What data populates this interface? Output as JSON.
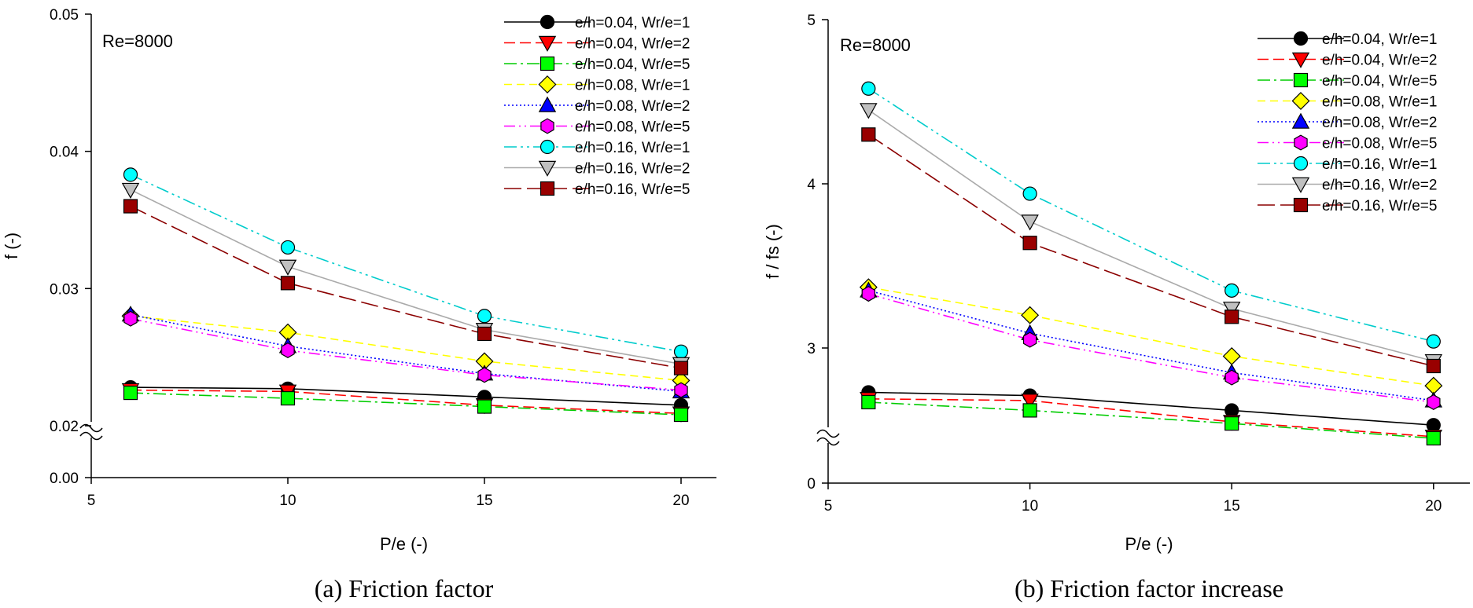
{
  "series_styles": [
    {
      "name": "e/h=0.04, Wr/e=1",
      "color": "#000000",
      "marker": "circle",
      "dash": "",
      "marker_fill": "#000000"
    },
    {
      "name": "e/h=0.04, Wr/e=2",
      "color": "#ff0000",
      "marker": "triangle-down",
      "dash": "14,6",
      "marker_fill": "#ff0000"
    },
    {
      "name": "e/h=0.04, Wr/e=5",
      "color": "#00cc00",
      "marker": "square",
      "dash": "16,5,3,5",
      "marker_fill": "#00ff00"
    },
    {
      "name": "e/h=0.08, Wr/e=1",
      "color": "#ffff00",
      "marker": "diamond",
      "dash": "10,6",
      "marker_fill": "#ffff00"
    },
    {
      "name": "e/h=0.08, Wr/e=2",
      "color": "#0000ff",
      "marker": "triangle-up",
      "dash": "2,3",
      "marker_fill": "#0000ff"
    },
    {
      "name": "e/h=0.08, Wr/e=5",
      "color": "#ff00ff",
      "marker": "hexagon",
      "dash": "14,5,2,5,2,5",
      "marker_fill": "#ff00ff"
    },
    {
      "name": "e/h=0.16, Wr/e=1",
      "color": "#00cccc",
      "marker": "circle",
      "dash": "16,5,3,5,3,5",
      "marker_fill": "#00ffff"
    },
    {
      "name": "e/h=0.16, Wr/e=2",
      "color": "#aaaaaa",
      "marker": "triangle-down",
      "dash": "",
      "marker_fill": "#c0c0c0"
    },
    {
      "name": "e/h=0.16, Wr/e=5",
      "color": "#8b0000",
      "marker": "square",
      "dash": "22,7",
      "marker_fill": "#990000"
    }
  ],
  "chart_data": [
    {
      "type": "line",
      "caption": "(a) Friction factor",
      "title": "",
      "annotation": "Re=8000",
      "xlabel": "P/e (-)",
      "ylabel": "f (-)",
      "xlim": [
        5,
        20.9
      ],
      "x_ticks": [
        5,
        10,
        15,
        20
      ],
      "x_tick_labels": [
        "5",
        "10",
        "15",
        "20"
      ],
      "y_axis_break": true,
      "y_ticks": [
        0.0,
        0.02,
        0.03,
        0.04,
        0.05
      ],
      "y_tick_labels": [
        "0.00",
        "0.02",
        "0.03",
        "0.04",
        "0.05"
      ],
      "x": [
        6,
        10,
        15,
        20
      ],
      "series": [
        {
          "name": "e/h=0.04, Wr/e=1",
          "values": [
            0.0228,
            0.0227,
            0.0221,
            0.0215
          ]
        },
        {
          "name": "e/h=0.04, Wr/e=2",
          "values": [
            0.0226,
            0.0225,
            0.0215,
            0.0209
          ]
        },
        {
          "name": "e/h=0.04, Wr/e=5",
          "values": [
            0.0224,
            0.022,
            0.0214,
            0.0208
          ]
        },
        {
          "name": "e/h=0.08, Wr/e=1",
          "values": [
            0.028,
            0.0268,
            0.0247,
            0.0233
          ]
        },
        {
          "name": "e/h=0.08, Wr/e=2",
          "values": [
            0.0281,
            0.0258,
            0.0238,
            0.0225
          ]
        },
        {
          "name": "e/h=0.08, Wr/e=5",
          "values": [
            0.0278,
            0.0255,
            0.0237,
            0.0226
          ]
        },
        {
          "name": "e/h=0.16, Wr/e=1",
          "values": [
            0.0383,
            0.033,
            0.028,
            0.0254
          ]
        },
        {
          "name": "e/h=0.16, Wr/e=2",
          "values": [
            0.0372,
            0.0316,
            0.027,
            0.0245
          ]
        },
        {
          "name": "e/h=0.16, Wr/e=5",
          "values": [
            0.036,
            0.0304,
            0.0267,
            0.0242
          ]
        }
      ]
    },
    {
      "type": "line",
      "caption": "(b) Friction factor increase",
      "title": "",
      "annotation": "Re=8000",
      "xlabel": "P/e (-)",
      "ylabel": "f / fs (-)",
      "xlim": [
        5,
        20.9
      ],
      "x_ticks": [
        5,
        10,
        15,
        20
      ],
      "x_tick_labels": [
        "5",
        "10",
        "15",
        "20"
      ],
      "y_axis_break": true,
      "y_ticks": [
        0,
        3,
        4,
        5
      ],
      "y_tick_labels": [
        "0",
        "3",
        "4",
        "5"
      ],
      "x": [
        6,
        10,
        15,
        20
      ],
      "series": [
        {
          "name": "e/h=0.04, Wr/e=1",
          "values": [
            2.73,
            2.71,
            2.62,
            2.53
          ]
        },
        {
          "name": "e/h=0.04, Wr/e=2",
          "values": [
            2.69,
            2.68,
            2.55,
            2.46
          ]
        },
        {
          "name": "e/h=0.04, Wr/e=5",
          "values": [
            2.67,
            2.62,
            2.54,
            2.45
          ]
        },
        {
          "name": "e/h=0.08, Wr/e=1",
          "values": [
            3.37,
            3.2,
            2.95,
            2.77
          ]
        },
        {
          "name": "e/h=0.08, Wr/e=2",
          "values": [
            3.35,
            3.09,
            2.85,
            2.68
          ]
        },
        {
          "name": "e/h=0.08, Wr/e=5",
          "values": [
            3.33,
            3.05,
            2.82,
            2.67
          ]
        },
        {
          "name": "e/h=0.16, Wr/e=1",
          "values": [
            4.58,
            3.94,
            3.35,
            3.04
          ]
        },
        {
          "name": "e/h=0.16, Wr/e=2",
          "values": [
            4.45,
            3.77,
            3.24,
            2.92
          ]
        },
        {
          "name": "e/h=0.16, Wr/e=5",
          "values": [
            4.3,
            3.64,
            3.19,
            2.89
          ]
        }
      ]
    }
  ]
}
